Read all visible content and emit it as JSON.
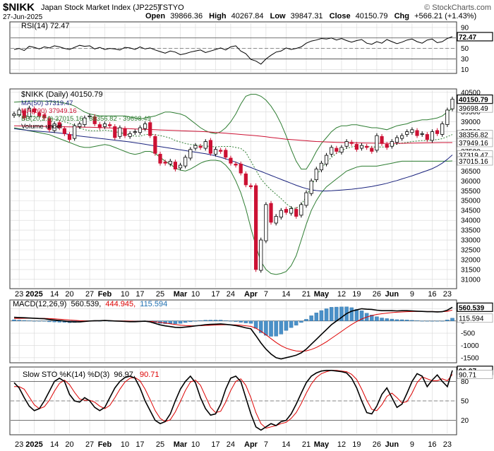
{
  "header": {
    "symbol": "$NIKK",
    "name": "Japan Stock Market Index (JP225)",
    "exchange": "TSTYO",
    "date": "27-Jun-2025",
    "open_label": "Open",
    "open": "39866.36",
    "high_label": "High",
    "high": "40267.84",
    "low_label": "Low",
    "low": "39847.31",
    "close_label": "Close",
    "close": "40150.79",
    "chg_label": "Chg",
    "chg": "+566.21 (+1.43%)",
    "watermark": "© StockCharts.com"
  },
  "colors": {
    "up": "#000000",
    "down": "#cc1133",
    "ma50": "#1a237e",
    "ma200": "#cc1133",
    "bb": "#2e7d32",
    "bb_mid": "#2e7d32",
    "macd_hist": "#4a90c8",
    "sto_d": "#dd0000",
    "grid": "#d8d8d8",
    "panel_border": "#333333"
  },
  "x_axis": {
    "labels": [
      "23",
      "2025",
      "14",
      "20",
      "27",
      "Feb",
      "10",
      "17",
      "25",
      "Mar",
      "10",
      "17",
      "24",
      "Apr",
      "7",
      "14",
      "21",
      "May",
      "12",
      "19",
      "26",
      "Jun",
      "9",
      "16",
      "23"
    ],
    "bold": [
      "2025",
      "Feb",
      "Mar",
      "Apr",
      "May",
      "Jun"
    ]
  },
  "chart_data": [
    {
      "type": "line",
      "name": "RSI",
      "title": "RSI(14) 72.47",
      "y_ticks": [
        90,
        70,
        50,
        30,
        10
      ],
      "levels": [
        70,
        30
      ],
      "ylim": [
        5,
        98
      ],
      "last_value_label": "72.47",
      "values": [
        48,
        50,
        46,
        54,
        52,
        49,
        53,
        51,
        55,
        53,
        50,
        48,
        52,
        56,
        54,
        55,
        49,
        52,
        48,
        50,
        49,
        47,
        52,
        51,
        48,
        53,
        49,
        51,
        47,
        44,
        41,
        45,
        43,
        38,
        40,
        43,
        45,
        47,
        42,
        45,
        48,
        51,
        47,
        53,
        55,
        45,
        40,
        29,
        26,
        20,
        30,
        37,
        43,
        45,
        51,
        48,
        50,
        53,
        60,
        64,
        66,
        69,
        68,
        70,
        66,
        69,
        65,
        62,
        65,
        67,
        60,
        58,
        63,
        60,
        67,
        63,
        59,
        62,
        66,
        68,
        63,
        60,
        66,
        68,
        61,
        63,
        69,
        72.47
      ]
    },
    {
      "type": "candlestick",
      "name": "$NIKK (Daily)",
      "title": "$NIKK (Daily) 40150.79",
      "ylim": [
        30600,
        40600
      ],
      "y_ticks": [
        40500,
        40000,
        39500,
        39000,
        38500,
        38000,
        37500,
        37000,
        36500,
        36000,
        35500,
        35000,
        34500,
        34000,
        33500,
        33000,
        32500,
        32000,
        31500,
        31000
      ],
      "legend": [
        {
          "label": "MA(50) 37319.47",
          "color": "#1a237e"
        },
        {
          "label": "MA(200) 37949.16",
          "color": "#cc1133"
        },
        {
          "label": "BB(20,2.0) 37015.16 - 38356.82 - 39698.49",
          "color": "#2e7d32"
        },
        {
          "label": "Volume undef",
          "color": "#000000"
        }
      ],
      "price_labels": [
        {
          "value": 40150.79,
          "label": "40150.79",
          "style": "close"
        },
        {
          "value": 39698.49,
          "label": "39698.49",
          "style": "plain"
        },
        {
          "value": 38356.82,
          "label": "38356.82",
          "style": "plain"
        },
        {
          "value": 37949.16,
          "label": "37949.16",
          "style": "plain"
        },
        {
          "value": 37319.47,
          "label": "37319.47",
          "style": "plain"
        },
        {
          "value": 37015.16,
          "label": "37015.16",
          "style": "plain"
        }
      ],
      "close": [
        39400,
        39600,
        39200,
        39700,
        39500,
        39300,
        39200,
        38600,
        38900,
        38700,
        38400,
        38100,
        38800,
        38900,
        39200,
        39300,
        38900,
        38700,
        38900,
        38800,
        38200,
        38700,
        38300,
        38400,
        38500,
        38700,
        38900,
        38300,
        37400,
        36900,
        36900,
        37000,
        36600,
        36800,
        37200,
        37600,
        37800,
        37700,
        38000,
        37400,
        37600,
        37500,
        37200,
        36900,
        36800,
        36400,
        35800,
        35700,
        31500,
        33000,
        34800,
        33900,
        34200,
        34500,
        34400,
        34600,
        34200,
        34800,
        35400,
        36000,
        36600,
        36900,
        37300,
        37700,
        37500,
        37700,
        38000,
        37900,
        37600,
        37800,
        37700,
        37500,
        38300,
        37900,
        37700,
        38000,
        38200,
        38300,
        38500,
        38600,
        38300,
        38400,
        38100,
        38500,
        38400,
        38900,
        39600,
        40150.79
      ],
      "ma50": [
        38650,
        38620,
        38590,
        38560,
        38540,
        38520,
        38500,
        38480,
        38460,
        38430,
        38400,
        38360,
        38320,
        38280,
        38250,
        38220,
        38190,
        38160,
        38130,
        38100,
        38070,
        38040,
        38010,
        37980,
        37940,
        37900,
        37860,
        37820,
        37780,
        37740,
        37700,
        37660,
        37620,
        37580,
        37540,
        37500,
        37460,
        37420,
        37380,
        37330,
        37270,
        37200,
        37120,
        37040,
        36950,
        36860,
        36770,
        36680,
        36580,
        36480,
        36380,
        36280,
        36180,
        36080,
        35980,
        35880,
        35780,
        35690,
        35610,
        35550,
        35510,
        35490,
        35490,
        35500,
        35520,
        35540,
        35560,
        35580,
        35610,
        35640,
        35680,
        35720,
        35770,
        35820,
        35880,
        35950,
        36020,
        36100,
        36180,
        36260,
        36350,
        36440,
        36530,
        36620,
        36750,
        36900,
        37100,
        37319.47
      ],
      "ma200": [
        38800,
        38795,
        38790,
        38785,
        38780,
        38775,
        38770,
        38765,
        38760,
        38755,
        38750,
        38745,
        38740,
        38735,
        38730,
        38725,
        38720,
        38710,
        38700,
        38690,
        38680,
        38670,
        38660,
        38650,
        38640,
        38630,
        38620,
        38610,
        38600,
        38590,
        38580,
        38570,
        38560,
        38550,
        38540,
        38530,
        38520,
        38510,
        38500,
        38480,
        38460,
        38440,
        38420,
        38400,
        38380,
        38360,
        38340,
        38320,
        38300,
        38270,
        38240,
        38210,
        38180,
        38150,
        38120,
        38100,
        38080,
        38060,
        38040,
        38020,
        38000,
        37990,
        37980,
        37970,
        37960,
        37950,
        37945,
        37940,
        37935,
        37930,
        37925,
        37920,
        37915,
        37910,
        37910,
        37910,
        37910,
        37910,
        37915,
        37920,
        37925,
        37930,
        37935,
        37940,
        37943,
        37946,
        37948,
        37949.16
      ],
      "bb_upper": [
        40000,
        40020,
        40040,
        40050,
        40060,
        40060,
        40050,
        40040,
        40020,
        40000,
        39950,
        39900,
        39800,
        39650,
        39500,
        39400,
        39350,
        39300,
        39300,
        39300,
        39300,
        39300,
        39300,
        39250,
        39200,
        39150,
        39200,
        39250,
        39300,
        39400,
        39500,
        39500,
        39450,
        39400,
        39300,
        39100,
        38900,
        38700,
        38550,
        38450,
        38400,
        38500,
        38700,
        39000,
        39400,
        39900,
        40300,
        40400,
        40400,
        40300,
        40100,
        39800,
        39400,
        38900,
        38300,
        37600,
        37000,
        36600,
        36600,
        37000,
        37500,
        37900,
        38200,
        38500,
        38700,
        38800,
        38800,
        38850,
        38850,
        38800,
        38750,
        38700,
        38700,
        38650,
        38600,
        38700,
        38800,
        38850,
        38900,
        39000,
        39050,
        39100,
        39100,
        39150,
        39200,
        39300,
        39500,
        39698.49
      ],
      "bb_lower": [
        38700,
        38650,
        38600,
        38550,
        38500,
        38450,
        38400,
        38350,
        38250,
        38150,
        38050,
        37950,
        37850,
        37750,
        37700,
        37700,
        37750,
        37800,
        37850,
        37800,
        37700,
        37600,
        37500,
        37400,
        37350,
        37400,
        37500,
        37500,
        37400,
        37200,
        37000,
        36850,
        36650,
        36550,
        36500,
        36600,
        36750,
        36900,
        37000,
        37050,
        37050,
        37000,
        36800,
        36500,
        36000,
        35400,
        34600,
        33600,
        32700,
        31900,
        31500,
        31300,
        31250,
        31300,
        31400,
        31700,
        32200,
        33000,
        33800,
        34500,
        35000,
        35400,
        35700,
        35900,
        36100,
        36300,
        36500,
        36600,
        36700,
        36750,
        36750,
        36750,
        36750,
        36800,
        36850,
        36900,
        36950,
        37000,
        37000,
        37000,
        37000,
        37000,
        37000,
        37000,
        37000,
        37000,
        37000,
        37015.16
      ],
      "bb_mid": [
        39350,
        39335,
        39320,
        39300,
        39280,
        39255,
        39225,
        39195,
        39135,
        39075,
        39000,
        38925,
        38825,
        38700,
        38600,
        38550,
        38550,
        38550,
        38575,
        38550,
        38500,
        38450,
        38400,
        38325,
        38275,
        38275,
        38350,
        38375,
        38350,
        38300,
        38250,
        38175,
        38050,
        37975,
        37900,
        37850,
        37825,
        37800,
        37775,
        37750,
        37725,
        37750,
        37750,
        37750,
        37700,
        37650,
        37450,
        37000,
        36550,
        36100,
        35800,
        35550,
        35325,
        35100,
        34850,
        34650,
        34600,
        34800,
        35200,
        35750,
        36250,
        36650,
        36950,
        37200,
        37400,
        37550,
        37650,
        37725,
        37775,
        37775,
        37750,
        37725,
        37725,
        37725,
        37725,
        37800,
        37875,
        37925,
        37950,
        38000,
        38025,
        38050,
        38050,
        38075,
        38100,
        38150,
        38250,
        38356.82
      ]
    },
    {
      "type": "line",
      "name": "MACD",
      "title": "MACD(12,26,9) 560.539, 444.945, 115.594",
      "title_parts": {
        "a": "MACD(12,26,9)",
        "b": "560.539,",
        "c": "444.945,",
        "d": "115.594"
      },
      "y_ticks": [
        500,
        0,
        -500,
        -1000,
        -1500
      ],
      "ylim": [
        -1650,
        800
      ],
      "labels": [
        {
          "value": 560.539,
          "label": "560.539",
          "style": "close"
        },
        {
          "value": 115.594,
          "label": "115.594",
          "style": "plain"
        }
      ],
      "macd": [
        150,
        140,
        130,
        120,
        110,
        100,
        90,
        60,
        40,
        20,
        0,
        -30,
        -40,
        -40,
        -20,
        0,
        10,
        10,
        20,
        10,
        0,
        -10,
        -20,
        -30,
        -30,
        -20,
        -10,
        -40,
        -100,
        -160,
        -200,
        -230,
        -260,
        -270,
        -250,
        -230,
        -200,
        -180,
        -150,
        -140,
        -130,
        -120,
        -140,
        -160,
        -190,
        -230,
        -280,
        -320,
        -600,
        -900,
        -1150,
        -1350,
        -1500,
        -1550,
        -1500,
        -1450,
        -1400,
        -1300,
        -1150,
        -950,
        -750,
        -550,
        -350,
        -150,
        0,
        150,
        300,
        400,
        450,
        500,
        480,
        470,
        440,
        420,
        420,
        420,
        410,
        420,
        420,
        410,
        400,
        390,
        380,
        380,
        370,
        380,
        440,
        560.539
      ],
      "signal": [
        100,
        105,
        108,
        110,
        110,
        108,
        105,
        96,
        85,
        72,
        58,
        40,
        24,
        11,
        5,
        4,
        5,
        6,
        9,
        9,
        7,
        3,
        -2,
        -8,
        -12,
        -14,
        -13,
        -19,
        -35,
        -60,
        -88,
        -117,
        -145,
        -170,
        -186,
        -195,
        -196,
        -193,
        -184,
        -176,
        -167,
        -157,
        -154,
        -155,
        -162,
        -175,
        -196,
        -221,
        -297,
        -418,
        -564,
        -721,
        -877,
        -1011,
        -1109,
        -1177,
        -1222,
        -1237,
        -1220,
        -1166,
        -1083,
        -976,
        -851,
        -711,
        -569,
        -425,
        -280,
        -144,
        -25,
        80,
        160,
        222,
        266,
        297,
        322,
        341,
        355,
        368,
        378,
        384,
        387,
        387,
        386,
        385,
        382,
        382,
        394,
        444.945
      ],
      "histogram": [
        50,
        35,
        22,
        10,
        0,
        -8,
        -15,
        -36,
        -45,
        -52,
        -58,
        -70,
        -64,
        -51,
        -25,
        -4,
        5,
        4,
        11,
        1,
        -7,
        -13,
        -18,
        -22,
        -18,
        -6,
        3,
        -21,
        -65,
        -100,
        -112,
        -113,
        -115,
        -100,
        -64,
        -35,
        -4,
        13,
        34,
        36,
        37,
        37,
        14,
        -5,
        -28,
        -55,
        -84,
        -99,
        -303,
        -482,
        -586,
        -629,
        -623,
        -539,
        -391,
        -273,
        -178,
        -63,
        70,
        216,
        333,
        426,
        501,
        561,
        569,
        575,
        580,
        544,
        475,
        420,
        320,
        248,
        174,
        123,
        98,
        79,
        55,
        52,
        42,
        26,
        13,
        3,
        -6,
        -5,
        -12,
        -2,
        46,
        115.594
      ]
    },
    {
      "type": "line",
      "name": "Slow STO",
      "title": "Slow STO %K(14) %D(3) 96.97, 90.71",
      "title_parts": {
        "a": "Slow STO %K(14) %D(3)",
        "b": "96.97,",
        "c": "90.71"
      },
      "y_ticks": [
        80,
        50,
        20
      ],
      "levels": [
        80,
        50,
        20
      ],
      "ylim": [
        0,
        100
      ],
      "labels": [
        {
          "value": 96.97,
          "label": "96.97",
          "style": "close"
        },
        {
          "value": 90.71,
          "label": "90.71",
          "style": "plain"
        }
      ],
      "k": [
        78,
        70,
        55,
        42,
        35,
        38,
        50,
        65,
        80,
        85,
        80,
        60,
        50,
        48,
        55,
        50,
        40,
        35,
        40,
        55,
        70,
        80,
        86,
        88,
        85,
        70,
        50,
        35,
        20,
        15,
        18,
        30,
        50,
        68,
        80,
        88,
        78,
        55,
        38,
        28,
        30,
        45,
        68,
        85,
        88,
        80,
        55,
        30,
        10,
        5,
        10,
        15,
        12,
        18,
        20,
        30,
        45,
        62,
        78,
        88,
        93,
        96,
        97,
        97,
        96,
        95,
        93,
        85,
        70,
        50,
        32,
        30,
        42,
        60,
        70,
        55,
        40,
        45,
        62,
        80,
        92,
        88,
        72,
        82,
        90,
        80,
        72,
        96.97
      ],
      "d": [
        72,
        72,
        68,
        56,
        44,
        38,
        41,
        51,
        65,
        77,
        82,
        75,
        63,
        53,
        51,
        51,
        48,
        42,
        38,
        43,
        55,
        68,
        79,
        85,
        86,
        81,
        68,
        52,
        35,
        23,
        18,
        21,
        33,
        49,
        66,
        79,
        82,
        74,
        57,
        40,
        32,
        34,
        48,
        66,
        80,
        84,
        74,
        55,
        32,
        15,
        8,
        10,
        12,
        15,
        17,
        23,
        32,
        46,
        62,
        76,
        86,
        92,
        95,
        97,
        97,
        96,
        95,
        91,
        83,
        68,
        51,
        37,
        35,
        44,
        57,
        62,
        55,
        47,
        49,
        62,
        78,
        87,
        84,
        81,
        81,
        84,
        81,
        90.71
      ]
    }
  ]
}
